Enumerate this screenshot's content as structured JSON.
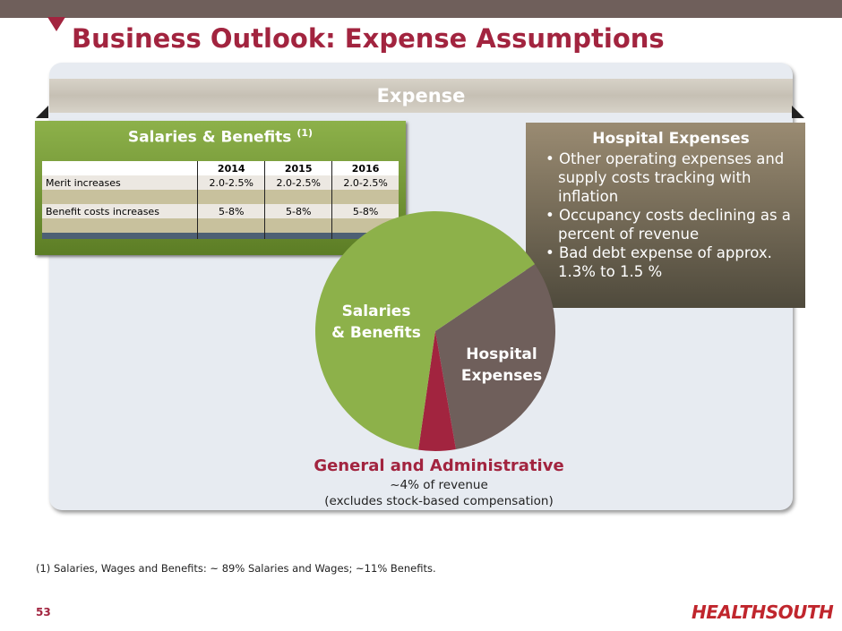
{
  "title": "Business Outlook: Expense Assumptions",
  "band": "Expense",
  "salaries": {
    "title": "Salaries & Benefits",
    "note": "(1)",
    "headers": [
      "",
      "2014",
      "2015",
      "2016"
    ],
    "rows": [
      [
        "Merit increases",
        "2.0-2.5%",
        "2.0-2.5%",
        "2.0-2.5%"
      ],
      [
        "Benefit costs increases",
        "5-8%",
        "5-8%",
        "5-8%"
      ]
    ]
  },
  "hospital": {
    "title": "Hospital Expenses",
    "bullets": [
      "• Other operating expenses and supply costs tracking with inflation",
      "• Occupancy costs declining as a percent of revenue",
      "• Bad debt expense of approx. 1.3% to 1.5 %"
    ]
  },
  "chart_data": {
    "type": "pie",
    "start_angle_deg": 56,
    "slices": [
      {
        "label": "Hospital Expenses",
        "value": 31.7,
        "color": "#6f5f5b"
      },
      {
        "label": "General and Administrative",
        "value": 5,
        "color": "#a2243f"
      },
      {
        "label": "Salaries & Benefits",
        "value": 63.3,
        "color": "#8db14a"
      }
    ],
    "labels": {
      "sal1": "Salaries",
      "sal2": "& Benefits",
      "hos1": "Hospital",
      "hos2": "Expenses"
    }
  },
  "ga": {
    "title": "General and Administrative",
    "line1": "~4% of revenue",
    "line2": "(excludes stock-based compensation)"
  },
  "footnote": "(1)  Salaries, Wages and Benefits: ~ 89% Salaries and Wages; ~11% Benefits.",
  "page": "53",
  "logo": "HEALTHSOUTH"
}
